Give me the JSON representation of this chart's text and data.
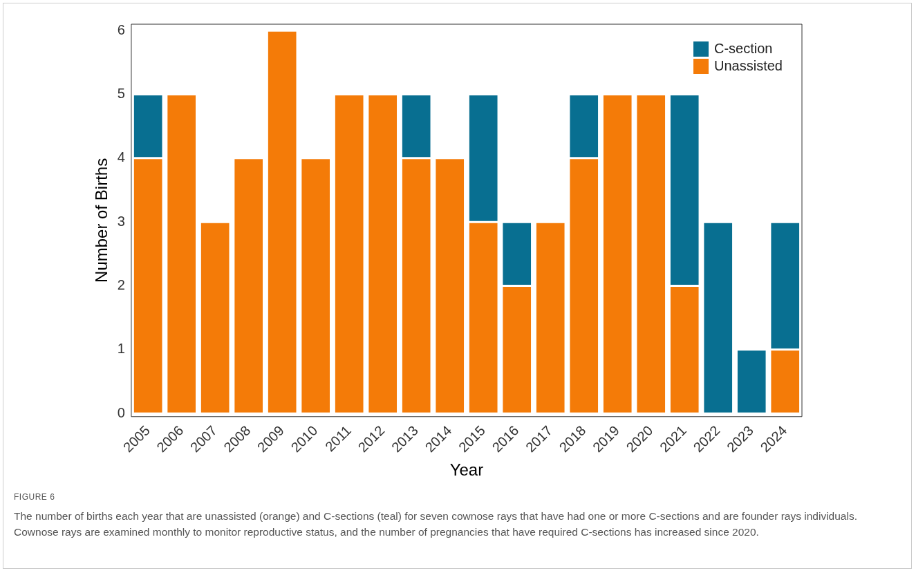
{
  "chart_data": {
    "type": "bar",
    "stacked": true,
    "xlabel": "Year",
    "ylabel": "Number of Births",
    "categories": [
      "2005",
      "2006",
      "2007",
      "2008",
      "2009",
      "2010",
      "2011",
      "2012",
      "2013",
      "2014",
      "2015",
      "2016",
      "2017",
      "2018",
      "2019",
      "2020",
      "2021",
      "2022",
      "2023",
      "2024"
    ],
    "series": [
      {
        "name": "Unassisted",
        "color": "#f47b08",
        "values": [
          4,
          5,
          3,
          4,
          6,
          4,
          5,
          5,
          4,
          4,
          3,
          2,
          3,
          4,
          5,
          5,
          2,
          0,
          0,
          1
        ]
      },
      {
        "name": "C-section",
        "color": "#086f91",
        "values": [
          1,
          0,
          0,
          0,
          0,
          0,
          0,
          0,
          1,
          0,
          2,
          1,
          0,
          1,
          0,
          0,
          3,
          3,
          1,
          2
        ]
      }
    ],
    "ylim": [
      -0.05,
      6.1
    ],
    "yticks": [
      0,
      1,
      2,
      3,
      4,
      5,
      6
    ],
    "grid": false,
    "legend": "top right",
    "annotations": [
      "FIGURE 6",
      "The number of births each year that are unassisted (orange) and C-sections (teal) for seven cownose rays that have had one or more C-sections and are founder rays individuals. Cownose rays are examined monthly to monitor reproductive status, and the number of pregnancies that have required C-sections has increased since 2020."
    ]
  }
}
